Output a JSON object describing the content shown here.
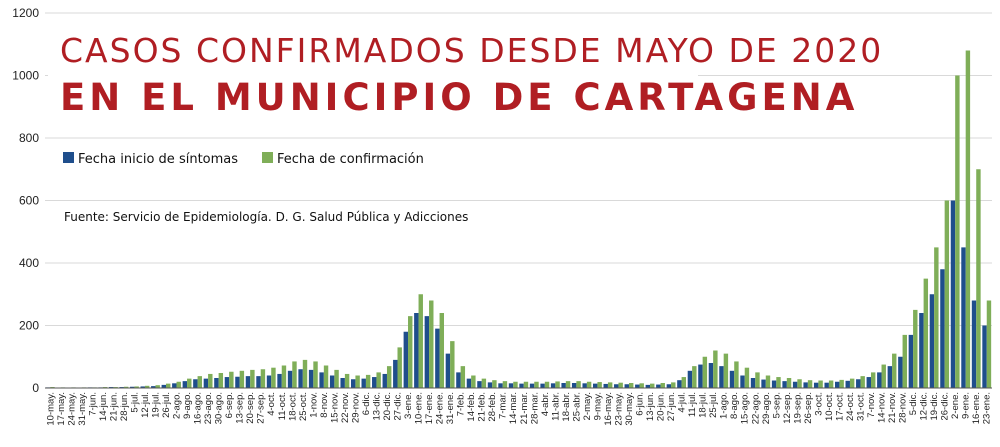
{
  "chart_data": {
    "type": "bar",
    "title": "CASOS CONFIRMADOS DESDE MAYO DE 2020",
    "subtitle": "EN EL MUNICIPIO DE CARTAGENA",
    "source": "Fuente: Servicio de Epidemiología. D. G. Salud Pública y Adicciones",
    "xlabel": "",
    "ylabel": "",
    "ylim": [
      0,
      1200
    ],
    "yticks": [
      "0",
      "200",
      "400",
      "600",
      "800",
      "1000",
      "1200"
    ],
    "grid": true,
    "legend_position": "top-left",
    "x_tick_labels": [
      "10-may.",
      "17-may.",
      "24-may.",
      "31-may.",
      "7-jun.",
      "14-jun.",
      "21-jun.",
      "28-jun.",
      "5-jul.",
      "12-jul.",
      "19-jul.",
      "26-jul.",
      "2-ago.",
      "9-ago.",
      "16-ago.",
      "23-ago.",
      "30-ago.",
      "6-sep.",
      "13-sep.",
      "20-sep.",
      "27-sep.",
      "4-oct.",
      "11-oct.",
      "18-oct.",
      "25-oct.",
      "1-nov.",
      "8-nov.",
      "15-nov.",
      "22-nov.",
      "29-nov.",
      "6-dic.",
      "13-dic.",
      "20-dic.",
      "27-dic.",
      "3-ene.",
      "10-ene.",
      "17-ene.",
      "24-ene.",
      "31-ene.",
      "7-feb.",
      "14-feb.",
      "21-feb.",
      "28-feb.",
      "7-mar.",
      "14-mar.",
      "21-mar.",
      "28-mar.",
      "4-abr.",
      "11-abr.",
      "18-abr.",
      "25-abr.",
      "2-may.",
      "9-may.",
      "16-may.",
      "23-may.",
      "30-may.",
      "6-jun.",
      "13-jun.",
      "20-jun.",
      "27-jun.",
      "4-jul.",
      "11-jul.",
      "18-jul.",
      "25-jul.",
      "1-ago.",
      "8-ago.",
      "15-ago.",
      "22-ago.",
      "29-ago.",
      "5-sep.",
      "12-sep.",
      "19-sep.",
      "26-sep.",
      "3-oct.",
      "10-oct.",
      "17-oct.",
      "24-oct.",
      "31-oct.",
      "7-nov.",
      "14-nov.",
      "21-nov.",
      "28-nov.",
      "5-dic.",
      "12-dic.",
      "19-dic.",
      "26-dic.",
      "2-ene.",
      "9-ene.",
      "16-ene.",
      "23-ene."
    ],
    "series": [
      {
        "name": "Fecha inicio de síntomas",
        "color": "#1f4e8c",
        "values": [
          2,
          1,
          1,
          1,
          2,
          2,
          3,
          3,
          4,
          5,
          6,
          10,
          15,
          22,
          28,
          30,
          32,
          35,
          36,
          38,
          38,
          40,
          45,
          55,
          60,
          58,
          50,
          40,
          32,
          28,
          30,
          35,
          45,
          90,
          180,
          240,
          230,
          190,
          110,
          50,
          30,
          22,
          18,
          15,
          15,
          14,
          14,
          14,
          15,
          16,
          16,
          15,
          14,
          13,
          12,
          12,
          11,
          10,
          11,
          12,
          25,
          55,
          75,
          80,
          70,
          55,
          40,
          32,
          27,
          24,
          22,
          20,
          18,
          17,
          17,
          20,
          23,
          28,
          35,
          50,
          70,
          100,
          170,
          240,
          300,
          380,
          600,
          450,
          280,
          200
        ]
      },
      {
        "name": "Fecha de confirmación",
        "color": "#7fae58",
        "values": [
          3,
          2,
          2,
          2,
          2,
          3,
          3,
          4,
          5,
          7,
          9,
          14,
          20,
          30,
          38,
          45,
          48,
          52,
          55,
          58,
          60,
          65,
          72,
          85,
          90,
          85,
          72,
          58,
          45,
          40,
          42,
          50,
          70,
          130,
          230,
          300,
          280,
          240,
          150,
          70,
          40,
          30,
          25,
          22,
          20,
          20,
          20,
          20,
          21,
          22,
          22,
          20,
          19,
          18,
          17,
          16,
          15,
          14,
          16,
          18,
          35,
          70,
          100,
          120,
          110,
          85,
          65,
          50,
          40,
          35,
          32,
          28,
          25,
          24,
          24,
          26,
          30,
          38,
          50,
          75,
          110,
          170,
          250,
          350,
          450,
          600,
          1000,
          1080,
          700,
          280
        ]
      }
    ]
  }
}
